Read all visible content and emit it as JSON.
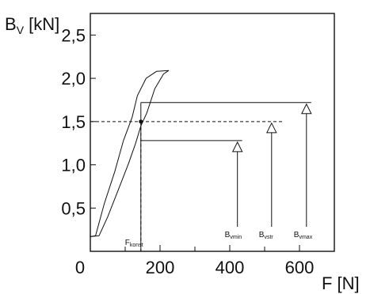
{
  "chart_data": {
    "type": "line",
    "title": "",
    "ylabel": {
      "main": "B",
      "sub": "V",
      "unit": " [kN]"
    },
    "xlabel": "F [N]",
    "xlim": [
      0,
      700
    ],
    "ylim": [
      0,
      2.75
    ],
    "x_ticks": [
      {
        "value": 0,
        "label": "0"
      },
      {
        "value": 200,
        "label": "200"
      },
      {
        "value": 400,
        "label": "400"
      },
      {
        "value": 600,
        "label": "600"
      }
    ],
    "x_minor_ticks": [
      100,
      300,
      500
    ],
    "y_ticks": [
      {
        "value": 0.5,
        "label": "0,5"
      },
      {
        "value": 1.0,
        "label": "1,0"
      },
      {
        "value": 1.5,
        "label": "1,5"
      },
      {
        "value": 2.0,
        "label": "2,0"
      },
      {
        "value": 2.5,
        "label": "2,5"
      }
    ],
    "grid": false,
    "legend": "none",
    "series": [
      {
        "role": "upper-branch",
        "points": [
          [
            0,
            0.17
          ],
          [
            15,
            0.18
          ],
          [
            40,
            0.55
          ],
          [
            70,
            0.92
          ],
          [
            95,
            1.28
          ],
          [
            120,
            1.55
          ],
          [
            135,
            1.8
          ],
          [
            160,
            2.0
          ],
          [
            190,
            2.08
          ],
          [
            225,
            2.09
          ]
        ]
      },
      {
        "role": "lower-branch",
        "points": [
          [
            0,
            0.17
          ],
          [
            25,
            0.18
          ],
          [
            50,
            0.4
          ],
          [
            85,
            0.76
          ],
          [
            110,
            1.02
          ],
          [
            130,
            1.25
          ],
          [
            145,
            1.45
          ],
          [
            162,
            1.6
          ],
          [
            185,
            1.88
          ],
          [
            210,
            2.05
          ],
          [
            225,
            2.09
          ]
        ]
      }
    ],
    "reference": {
      "f_konst": 145,
      "b_const": 1.5,
      "b_min": 1.28,
      "b_max": 1.72,
      "guide_line_end_x": 555,
      "levels": [
        {
          "x": 422,
          "value": 1.28,
          "main": "B",
          "sub": "vmin"
        },
        {
          "x": 520,
          "value": 1.5,
          "main": "B",
          "sub": "vstr"
        },
        {
          "x": 620,
          "value": 1.72,
          "main": "B",
          "sub": "vmax"
        }
      ],
      "f_label": {
        "main": "F",
        "sub": "konst"
      }
    }
  }
}
